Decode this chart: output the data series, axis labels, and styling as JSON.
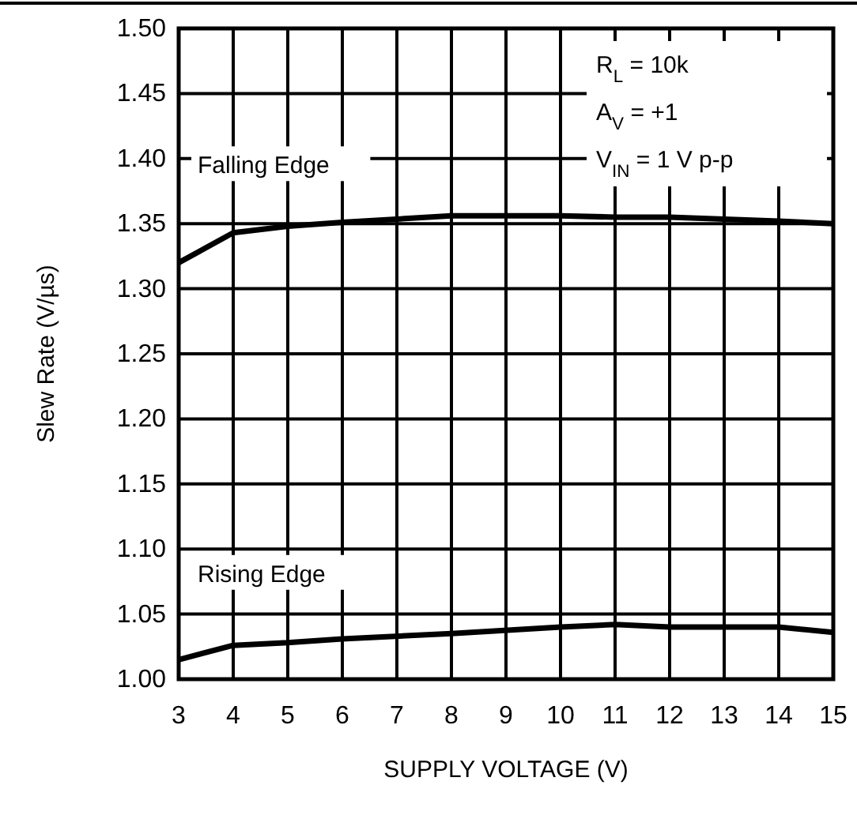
{
  "chart_data": {
    "type": "line",
    "xlabel": "SUPPLY VOLTAGE (V)",
    "ylabel": "Slew Rate (V/µs)",
    "x": [
      3,
      4,
      5,
      6,
      8,
      10,
      11,
      12,
      14,
      15
    ],
    "series": [
      {
        "name": "Falling Edge",
        "color": "#000000",
        "values": [
          1.32,
          1.343,
          1.348,
          1.351,
          1.356,
          1.356,
          1.355,
          1.355,
          1.352,
          1.35
        ]
      },
      {
        "name": "Rising Edge",
        "color": "#000000",
        "values": [
          1.015,
          1.026,
          1.028,
          1.031,
          1.035,
          1.04,
          1.042,
          1.04,
          1.04,
          1.036
        ]
      }
    ],
    "xlim": [
      3,
      15
    ],
    "xticks": [
      3,
      4,
      5,
      6,
      7,
      8,
      9,
      10,
      11,
      12,
      13,
      14,
      15
    ],
    "ylim": [
      1.0,
      1.5
    ],
    "yticks": [
      {
        "value": 1.0,
        "label": "1.00"
      },
      {
        "value": 1.05,
        "label": "1.05"
      },
      {
        "value": 1.1,
        "label": "1.10"
      },
      {
        "value": 1.15,
        "label": "1.15"
      },
      {
        "value": 1.2,
        "label": "1.20"
      },
      {
        "value": 1.25,
        "label": "1.25"
      },
      {
        "value": 1.3,
        "label": "1.30"
      },
      {
        "value": 1.35,
        "label": "1.35"
      },
      {
        "value": 1.4,
        "label": "1.40"
      },
      {
        "value": 1.45,
        "label": "1.45"
      },
      {
        "value": 1.5,
        "label": "1.50"
      }
    ],
    "grid": true,
    "marker": "none",
    "line_style": "solid",
    "annotations": [
      "R$_{L}$ = 10k",
      "A$_{V}$ = +1",
      "V$_{IN}$ = 1 V p-p"
    ]
  }
}
